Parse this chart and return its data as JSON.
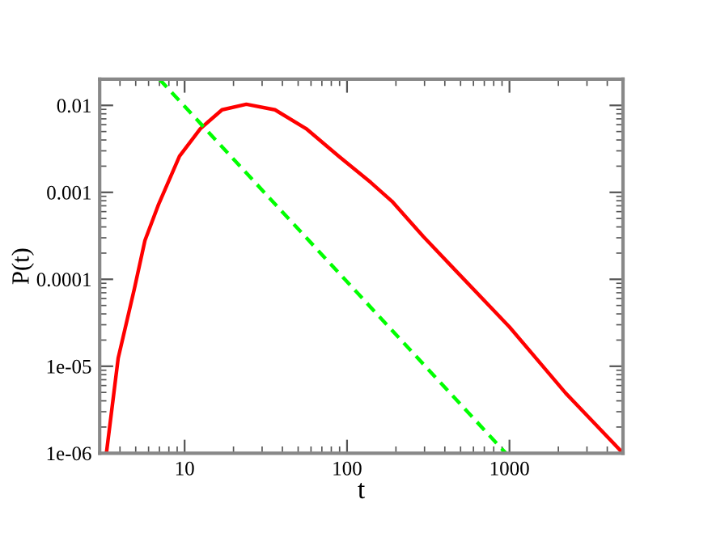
{
  "chart_data": {
    "type": "line",
    "xlabel": "t",
    "ylabel": "P(t)",
    "log": "xy",
    "xlim": [
      3,
      5000
    ],
    "ylim": [
      1e-06,
      0.02
    ],
    "xticks": [
      10,
      100,
      1000
    ],
    "yticks": [
      1e-06,
      1e-05,
      0.0001,
      0.001,
      0.01
    ],
    "grid": false,
    "legend": false,
    "marker": "none",
    "series": [
      {
        "color": "#ff0000",
        "line_style": "solid",
        "x": [
          3.3,
          3.9,
          4.9,
          5.7,
          6.9,
          9.3,
          12.5,
          17,
          24,
          36,
          56,
          89,
          140,
          189,
          295,
          468,
          1000,
          2220,
          5000
        ],
        "values": [
          1e-06,
          1.24e-05,
          7.7e-05,
          0.00028,
          0.00072,
          0.0026,
          0.0054,
          0.0089,
          0.0103,
          0.0089,
          0.0054,
          0.0026,
          0.0013,
          0.00079,
          0.00031,
          0.000125,
          2.83e-05,
          4.9e-06,
          1e-06
        ]
      },
      {
        "color": "#00ff00",
        "line_style": "dashed",
        "x": [
          7,
          950
        ],
        "values": [
          0.02,
          1e-06
        ]
      }
    ]
  }
}
